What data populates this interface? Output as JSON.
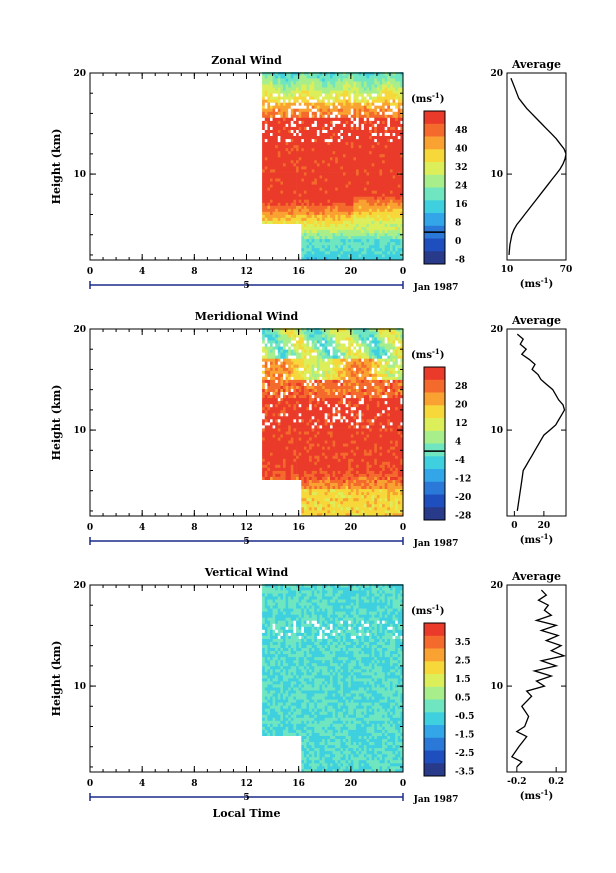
{
  "colors": {
    "scale": [
      "#283a8a",
      "#1f4fbf",
      "#2a78d8",
      "#32a6e8",
      "#3fd0e0",
      "#6fe6c0",
      "#a8ee8a",
      "#dcef5a",
      "#f6d83a",
      "#f9a232",
      "#f46a2c",
      "#ea3a2a"
    ],
    "missing": "#ffffff"
  },
  "chart_data": [
    {
      "type": "heatmap",
      "title": "Zonal Wind",
      "ylabel": "Height (km)",
      "yticks": [
        "20",
        "10"
      ],
      "xticks": [
        "0",
        "4",
        "8",
        "12",
        "16",
        "20",
        "0"
      ],
      "day_marker": "5",
      "date_label": "Jan 1987",
      "xlim": [
        0,
        24
      ],
      "ylim": [
        1.5,
        20
      ],
      "data_start": {
        "x": 13.2,
        "y_high": 20
      },
      "data_start_late": {
        "x": 16,
        "below_y": 5
      },
      "colorbar": {
        "unit": "(ms",
        "unit_exp": "-1",
        "unit_close": ")",
        "levels": [
          "48",
          "40",
          "32",
          "24",
          "16",
          "8",
          "0",
          "-8"
        ],
        "zero_line_after": 6
      },
      "profile": {
        "title": "Average",
        "yticks": [
          "20",
          "10"
        ],
        "xticks": [
          "10",
          "70"
        ],
        "xlabel": "(ms",
        "xlabel_exp": "-1",
        "xlabel_close": ")",
        "xlim": [
          10,
          70
        ],
        "x": [
          14,
          16,
          18,
          20,
          22,
          26,
          30,
          35,
          40,
          45,
          50,
          55,
          60,
          64,
          68,
          70,
          69,
          67,
          64,
          60,
          56,
          52,
          48,
          44,
          40,
          36,
          32,
          28,
          24,
          20,
          17,
          15,
          13,
          12
        ],
        "y": [
          19.5,
          19,
          18.5,
          18,
          17.5,
          17,
          16.5,
          16,
          15.5,
          15,
          14.5,
          14,
          13.5,
          13,
          12.5,
          12,
          11.5,
          11,
          10.5,
          10,
          9.5,
          9,
          8.5,
          8,
          7.5,
          7,
          6.5,
          6,
          5.5,
          5,
          4.5,
          4,
          3,
          2
        ]
      }
    },
    {
      "type": "heatmap",
      "title": "Meridional Wind",
      "ylabel": "Height (km)",
      "yticks": [
        "20",
        "10"
      ],
      "xticks": [
        "0",
        "4",
        "8",
        "12",
        "16",
        "20",
        "0"
      ],
      "day_marker": "5",
      "date_label": "Jan 1987",
      "xlim": [
        0,
        24
      ],
      "ylim": [
        1.5,
        20
      ],
      "data_start": {
        "x": 13.2,
        "y_high": 20
      },
      "data_start_late": {
        "x": 16,
        "below_y": 5
      },
      "colorbar": {
        "unit": "(ms",
        "unit_exp": "-1",
        "unit_close": ")",
        "levels": [
          "28",
          "20",
          "12",
          "4",
          "-4",
          "-12",
          "-20",
          "-28"
        ],
        "zero_line_after": 4
      },
      "profile": {
        "title": "Average",
        "yticks": [
          "20",
          "10"
        ],
        "xticks": [
          "0",
          "20"
        ],
        "xlabel": "(ms",
        "xlabel_exp": "-1",
        "xlabel_close": ")",
        "xlim": [
          -5,
          35
        ],
        "x": [
          2,
          6,
          4,
          8,
          5,
          10,
          14,
          12,
          16,
          18,
          22,
          26,
          28,
          30,
          33,
          34,
          32,
          30,
          28,
          24,
          20,
          18,
          16,
          14,
          12,
          10,
          8,
          6,
          5,
          4,
          3,
          2
        ],
        "y": [
          19.5,
          19,
          18.5,
          18,
          17.5,
          17,
          16.5,
          16,
          15.5,
          15,
          14.5,
          14,
          13.5,
          13,
          12.5,
          12,
          11.5,
          11,
          10.5,
          10,
          9.5,
          9,
          8.5,
          8,
          7.5,
          7,
          6.5,
          6,
          5,
          4,
          3,
          2
        ]
      }
    },
    {
      "type": "heatmap",
      "title": "Vertical Wind",
      "ylabel": "Height (km)",
      "yticks": [
        "20",
        "10"
      ],
      "xticks": [
        "0",
        "4",
        "8",
        "12",
        "16",
        "20",
        "0"
      ],
      "day_marker": "5",
      "xlabel": "Local Time",
      "date_label": "Jan 1987",
      "xlim": [
        0,
        24
      ],
      "ylim": [
        1.5,
        20
      ],
      "data_start": {
        "x": 13.2,
        "y_high": 20
      },
      "data_start_late": {
        "x": 16,
        "below_y": 5
      },
      "colorbar": {
        "unit": "(ms",
        "unit_exp": "-1",
        "unit_close": ")",
        "levels": [
          "3.5",
          "2.5",
          "1.5",
          "0.5",
          "-0.5",
          "-1.5",
          "-2.5",
          "-3.5"
        ],
        "zero_line_after": -1
      },
      "profile": {
        "title": "Average",
        "yticks": [
          "20",
          "10"
        ],
        "xticks": [
          "-0.2",
          "0.2"
        ],
        "xlabel": "(ms",
        "xlabel_exp": "-1",
        "xlabel_close": ")",
        "xlim": [
          -0.3,
          0.3
        ],
        "x": [
          0.05,
          0.1,
          0.02,
          0.12,
          0.08,
          0.15,
          0.0,
          0.2,
          0.05,
          0.22,
          0.1,
          0.25,
          0.15,
          0.28,
          0.05,
          0.2,
          -0.02,
          0.15,
          0.0,
          0.08,
          -0.1,
          -0.05,
          -0.15,
          -0.08,
          -0.12,
          -0.2,
          -0.1,
          -0.18,
          -0.25,
          -0.15,
          -0.2
        ],
        "y": [
          19.5,
          19,
          18.5,
          18,
          17.5,
          17,
          16.5,
          16,
          15.5,
          15,
          14.5,
          14,
          13.5,
          13,
          12.5,
          12,
          11.5,
          11,
          10.5,
          10,
          9.5,
          9,
          8,
          7,
          6,
          5.5,
          5,
          4,
          3,
          2.5,
          2
        ]
      }
    }
  ]
}
